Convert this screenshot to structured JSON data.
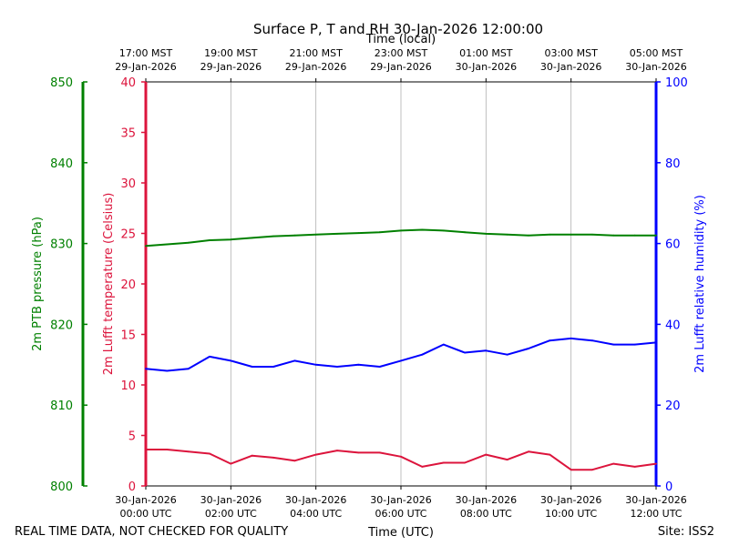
{
  "chart_data": {
    "type": "line",
    "title": "Surface P, T and RH 30-Jan-2026 12:00:00",
    "top_axis_label": "Time (local)",
    "bottom_axis_label": "Time (UTC)",
    "footer_left": "REAL TIME DATA, NOT CHECKED FOR QUALITY",
    "footer_right": "Site: ISS2",
    "x_range_hours": [
      0,
      12
    ],
    "local_ticks": [
      {
        "hour": 0,
        "line1": "17:00 MST",
        "line2": "29-Jan-2026"
      },
      {
        "hour": 2,
        "line1": "19:00 MST",
        "line2": "29-Jan-2026"
      },
      {
        "hour": 4,
        "line1": "21:00 MST",
        "line2": "29-Jan-2026"
      },
      {
        "hour": 6,
        "line1": "23:00 MST",
        "line2": "29-Jan-2026"
      },
      {
        "hour": 8,
        "line1": "01:00 MST",
        "line2": "30-Jan-2026"
      },
      {
        "hour": 10,
        "line1": "03:00 MST",
        "line2": "30-Jan-2026"
      },
      {
        "hour": 12,
        "line1": "05:00 MST",
        "line2": "30-Jan-2026"
      }
    ],
    "utc_ticks": [
      {
        "hour": 0,
        "line1": "30-Jan-2026",
        "line2": "00:00 UTC"
      },
      {
        "hour": 2,
        "line1": "30-Jan-2026",
        "line2": "02:00 UTC"
      },
      {
        "hour": 4,
        "line1": "30-Jan-2026",
        "line2": "04:00 UTC"
      },
      {
        "hour": 6,
        "line1": "30-Jan-2026",
        "line2": "06:00 UTC"
      },
      {
        "hour": 8,
        "line1": "30-Jan-2026",
        "line2": "08:00 UTC"
      },
      {
        "hour": 10,
        "line1": "30-Jan-2026",
        "line2": "10:00 UTC"
      },
      {
        "hour": 12,
        "line1": "30-Jan-2026",
        "line2": "12:00 UTC"
      }
    ],
    "axes": {
      "pressure": {
        "label": "2m PTB pressure (hPa)",
        "color": "#008000",
        "range": [
          800,
          850
        ],
        "ticks": [
          800,
          810,
          820,
          830,
          840,
          850
        ]
      },
      "temperature": {
        "label": "2m Lufft temperature (Celsius)",
        "color": "#dc143c",
        "range": [
          0,
          40
        ],
        "ticks": [
          0,
          5,
          10,
          15,
          20,
          25,
          30,
          35,
          40
        ]
      },
      "humidity": {
        "label": "2m Lufft relative humidity (%)",
        "color": "#0000ff",
        "range": [
          0,
          100
        ],
        "ticks": [
          0,
          20,
          40,
          60,
          80,
          100
        ]
      }
    },
    "series": [
      {
        "name": "2m PTB pressure",
        "axis": "pressure",
        "color": "#008000",
        "x": [
          0,
          0.5,
          1,
          1.5,
          2,
          2.5,
          3,
          3.5,
          4,
          4.5,
          5,
          5.5,
          6,
          6.5,
          7,
          7.5,
          8,
          8.5,
          9,
          9.5,
          10,
          10.5,
          11,
          11.5,
          12
        ],
        "values": [
          829.7,
          829.9,
          830.1,
          830.4,
          830.5,
          830.7,
          830.9,
          831.0,
          831.1,
          831.2,
          831.3,
          831.4,
          831.6,
          831.7,
          831.6,
          831.4,
          831.2,
          831.1,
          831.0,
          831.1,
          831.1,
          831.1,
          831.0,
          831.0,
          831.0
        ]
      },
      {
        "name": "2m Lufft temperature",
        "axis": "temperature",
        "color": "#dc143c",
        "x": [
          0,
          0.5,
          1,
          1.5,
          2,
          2.5,
          3,
          3.5,
          4,
          4.5,
          5,
          5.5,
          6,
          6.5,
          7,
          7.5,
          8,
          8.5,
          9,
          9.5,
          10,
          10.5,
          11,
          11.5,
          12
        ],
        "values": [
          3.6,
          3.6,
          3.4,
          3.2,
          2.2,
          3.0,
          2.8,
          2.5,
          3.1,
          3.5,
          3.3,
          3.3,
          2.9,
          1.9,
          2.3,
          2.3,
          3.1,
          2.6,
          3.4,
          3.1,
          1.6,
          1.6,
          2.2,
          1.9,
          2.2
        ]
      },
      {
        "name": "2m Lufft relative humidity",
        "axis": "humidity",
        "color": "#0000ff",
        "x": [
          0,
          0.5,
          1,
          1.5,
          2,
          2.5,
          3,
          3.5,
          4,
          4.5,
          5,
          5.5,
          6,
          6.5,
          7,
          7.5,
          8,
          8.5,
          9,
          9.5,
          10,
          10.5,
          11,
          11.5,
          12
        ],
        "values": [
          29,
          28.5,
          29,
          32,
          31,
          29.5,
          29.5,
          31,
          30,
          29.5,
          30,
          29.5,
          31,
          32.5,
          35,
          33,
          33.5,
          32.5,
          34,
          36,
          36.5,
          36,
          35,
          35,
          35.5
        ]
      }
    ]
  }
}
